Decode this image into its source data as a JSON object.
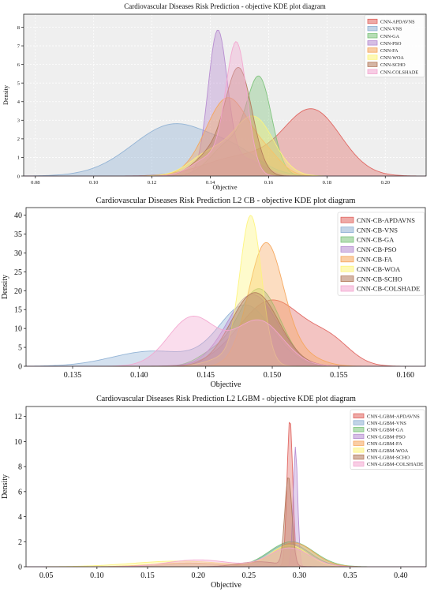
{
  "palette": {
    "red": "#e0645f",
    "blue": "#8fb1d4",
    "green": "#7cc37a",
    "purple": "#b58ad0",
    "orange": "#f6a55b",
    "yellow": "#fdf47a",
    "brown": "#b37a5c",
    "pink": "#f3a6d0"
  },
  "chart_data": [
    {
      "type": "area",
      "title": "Cardiovascular Diseases Risk Prediction - objective KDE plot diagram",
      "xlabel": "Objective",
      "ylabel": "Density",
      "xlim": [
        0.076,
        0.214
      ],
      "ylim": [
        0,
        8.7
      ],
      "xticks": [
        0.08,
        0.1,
        0.12,
        0.14,
        0.16,
        0.18,
        0.2
      ],
      "xtick_labels": [
        "0.08",
        "0.10",
        "0.12",
        "0.14",
        "0.16",
        "0.18",
        "0.20"
      ],
      "yticks": [
        0,
        1,
        2,
        3,
        4,
        5,
        6,
        7,
        8
      ],
      "ytick_labels": [
        "0",
        "1",
        "2",
        "3",
        "4",
        "5",
        "6",
        "7",
        "8"
      ],
      "grid": true,
      "background": "#efefef",
      "legend_position": "top-right",
      "series": [
        {
          "name": "CNN-APDAVNS",
          "color": "red",
          "components": [
            {
              "w": 3.5,
              "mu": 0.175,
              "sd": 0.0098
            },
            {
              "w": 1.0,
              "mu": 0.15,
              "sd": 0.012
            }
          ]
        },
        {
          "name": "CNN-VNS",
          "color": "blue",
          "components": [
            {
              "w": 2.8,
              "mu": 0.128,
              "sd": 0.0145
            },
            {
              "w": 0.7,
              "mu": 0.15,
              "sd": 0.008
            }
          ]
        },
        {
          "name": "CNN-GA",
          "color": "green",
          "components": [
            {
              "w": 4.8,
              "mu": 0.157,
              "sd": 0.0042
            },
            {
              "w": 1.8,
              "mu": 0.147,
              "sd": 0.0065
            }
          ]
        },
        {
          "name": "CNN-PSO",
          "color": "purple",
          "components": [
            {
              "w": 7.6,
              "mu": 0.1425,
              "sd": 0.0033
            },
            {
              "w": 0.9,
              "mu": 0.152,
              "sd": 0.006
            }
          ]
        },
        {
          "name": "CNN-FA",
          "color": "orange",
          "components": [
            {
              "w": 4.2,
              "mu": 0.146,
              "sd": 0.0075
            },
            {
              "w": 0.8,
              "mu": 0.16,
              "sd": 0.005
            }
          ]
        },
        {
          "name": "CNN-WOA",
          "color": "yellow",
          "components": [
            {
              "w": 3.1,
              "mu": 0.155,
              "sd": 0.0068
            },
            {
              "w": 1.2,
              "mu": 0.14,
              "sd": 0.007
            }
          ]
        },
        {
          "name": "CNN-SCHO",
          "color": "brown",
          "components": [
            {
              "w": 5.4,
              "mu": 0.15,
              "sd": 0.0045
            },
            {
              "w": 1.3,
              "mu": 0.141,
              "sd": 0.006
            }
          ]
        },
        {
          "name": "CNN-COLSHADE",
          "color": "pink",
          "components": [
            {
              "w": 6.9,
              "mu": 0.149,
              "sd": 0.0036
            },
            {
              "w": 1.0,
              "mu": 0.14,
              "sd": 0.006
            }
          ]
        }
      ]
    },
    {
      "type": "area",
      "title": "Cardiovascular Diseases Risk Prediction L2 CB - objective KDE plot diagram",
      "xlabel": "Objective",
      "ylabel": "Density",
      "xlim": [
        0.1315,
        0.1615
      ],
      "ylim": [
        0,
        42
      ],
      "xticks": [
        0.135,
        0.14,
        0.145,
        0.15,
        0.155,
        0.16
      ],
      "xtick_labels": [
        "0.135",
        "0.140",
        "0.145",
        "0.150",
        "0.155",
        "0.160"
      ],
      "yticks": [
        0,
        5,
        10,
        15,
        20,
        25,
        30,
        35,
        40
      ],
      "ytick_labels": [
        "0",
        "5",
        "10",
        "15",
        "20",
        "25",
        "30",
        "35",
        "40"
      ],
      "grid": false,
      "background": "#ffffff",
      "legend_position": "top-right",
      "series": [
        {
          "name": "CNN-CB-APDAVNS",
          "color": "red",
          "components": [
            {
              "w": 17.5,
              "mu": 0.15,
              "sd": 0.0025
            },
            {
              "w": 5.0,
              "mu": 0.1545,
              "sd": 0.0015
            }
          ]
        },
        {
          "name": "CNN-CB-VNS",
          "color": "blue",
          "components": [
            {
              "w": 16.0,
              "mu": 0.148,
              "sd": 0.002
            },
            {
              "w": 4.0,
              "mu": 0.141,
              "sd": 0.003
            }
          ]
        },
        {
          "name": "CNN-CB-GA",
          "color": "green",
          "components": [
            {
              "w": 20.5,
              "mu": 0.149,
              "sd": 0.0016
            },
            {
              "w": 3.0,
              "mu": 0.1455,
              "sd": 0.0012
            }
          ]
        },
        {
          "name": "CNN-CB-PSO",
          "color": "purple",
          "components": [
            {
              "w": 19.0,
              "mu": 0.1485,
              "sd": 0.0019
            }
          ]
        },
        {
          "name": "CNN-CB-FA",
          "color": "orange",
          "components": [
            {
              "w": 32.0,
              "mu": 0.1495,
              "sd": 0.0013
            },
            {
              "w": 3.0,
              "mu": 0.152,
              "sd": 0.0015
            }
          ]
        },
        {
          "name": "CNN-CB-WOA",
          "color": "yellow",
          "components": [
            {
              "w": 38.0,
              "mu": 0.1484,
              "sd": 0.0008
            },
            {
              "w": 3.0,
              "mu": 0.147,
              "sd": 0.0015
            }
          ]
        },
        {
          "name": "CNN-CB-SCHO",
          "color": "brown",
          "components": [
            {
              "w": 19.5,
              "mu": 0.1487,
              "sd": 0.0018
            }
          ]
        },
        {
          "name": "CNN-CB-COLSHADE",
          "color": "pink",
          "components": [
            {
              "w": 13.0,
              "mu": 0.144,
              "sd": 0.0018
            },
            {
              "w": 12.0,
              "mu": 0.149,
              "sd": 0.0018
            }
          ]
        }
      ]
    },
    {
      "type": "area",
      "title": "Cardiovascular Diseases Risk Prediction L2 LGBM - objective KDE plot diagram",
      "xlabel": "Objective",
      "ylabel": "Density",
      "xlim": [
        0.03,
        0.425
      ],
      "ylim": [
        0,
        12.8
      ],
      "xticks": [
        0.05,
        0.1,
        0.15,
        0.2,
        0.25,
        0.3,
        0.35,
        0.4
      ],
      "xtick_labels": [
        "0.05",
        "0.10",
        "0.15",
        "0.20",
        "0.25",
        "0.30",
        "0.35",
        "0.40"
      ],
      "yticks": [
        0,
        2,
        4,
        6,
        8,
        10,
        12
      ],
      "ytick_labels": [
        "0",
        "2",
        "4",
        "6",
        "8",
        "10",
        "12"
      ],
      "grid": false,
      "background": "#ffffff",
      "legend_position": "top-right",
      "series": [
        {
          "name": "CNN-LGBM-APDAVNS",
          "color": "red",
          "components": [
            {
              "w": 11.9,
              "mu": 0.2905,
              "sd": 0.0028
            }
          ]
        },
        {
          "name": "CNN-LGBM-VNS",
          "color": "blue",
          "components": [
            {
              "w": 1.85,
              "mu": 0.29,
              "sd": 0.02
            },
            {
              "w": 0.25,
              "mu": 0.2,
              "sd": 0.03
            }
          ]
        },
        {
          "name": "CNN-LGBM-GA",
          "color": "green",
          "components": [
            {
              "w": 2.0,
              "mu": 0.292,
              "sd": 0.022
            }
          ]
        },
        {
          "name": "CNN-LGBM-PSO",
          "color": "purple",
          "components": [
            {
              "w": 9.6,
              "mu": 0.296,
              "sd": 0.0022
            }
          ]
        },
        {
          "name": "CNN-LGBM-FA",
          "color": "orange",
          "components": [
            {
              "w": 1.9,
              "mu": 0.294,
              "sd": 0.02
            },
            {
              "w": 0.3,
              "mu": 0.19,
              "sd": 0.035
            }
          ]
        },
        {
          "name": "CNN-LGBM-WOA",
          "color": "yellow",
          "components": [
            {
              "w": 1.7,
              "mu": 0.29,
              "sd": 0.018
            },
            {
              "w": 0.45,
              "mu": 0.18,
              "sd": 0.045
            }
          ]
        },
        {
          "name": "CNN-LGBM-SCHO",
          "color": "brown",
          "components": [
            {
              "w": 7.1,
              "mu": 0.289,
              "sd": 0.0035
            },
            {
              "w": 0.4,
              "mu": 0.26,
              "sd": 0.02
            }
          ]
        },
        {
          "name": "CNN-LGBM-COLSHADE",
          "color": "pink",
          "components": [
            {
              "w": 0.55,
              "mu": 0.2,
              "sd": 0.03
            },
            {
              "w": 1.5,
              "mu": 0.29,
              "sd": 0.02
            }
          ]
        }
      ]
    }
  ]
}
